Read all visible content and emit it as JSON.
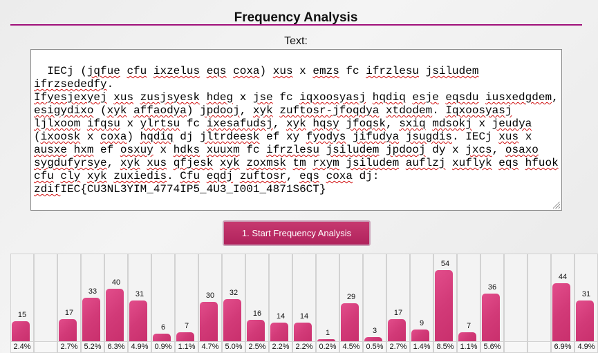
{
  "header": {
    "title": "Frequency Analysis"
  },
  "input": {
    "label": "Text:",
    "value": "IECj (jqfue cfu ixzelus eqs coxa) xus x emzs fc ifrzlesu jsiludem ifrzsededfy. Ifyesjexyej xus zusjsyesk hdeg x jse fc iqxoosyasj hqdiq esje eqsdu iusxedgdem, esigydixo (xyk affaodya) jpdooj, xyk zuftosr-jfoqdya xtdodem. Iqxoosyasj ljlxoom ifqsu x ylrtsu fc ixesafudsj, xyk hqsy jfoqsk, sxiq mdsokj x jeudya (ixoosk x coxa) hqdiq dj jltrdeesk ef xy fyodys jifudya jsugdis. IECj xus x ausxe hxm ef osxuy x hdks xuuxm fc ifrzlesu jsiludem jpdooj dy x jxcs, osaxo sygdufyrsye, xyk xus qfjesk xyk zoxmsk tm rxym jsiludem auflzj xuflyk eqs hfuok cfu cly xyk zuxiedis. Cfu eqdj zuftosr, eqs coxa dj: zdifIEC{CU3NL3YIM_4774IP5_4U3_I001_4871S6CT}"
  },
  "actions": {
    "start_label": "1. Start Frequency Analysis"
  },
  "chart_data": {
    "type": "bar",
    "visible_columns": 25,
    "counts": [
      15,
      null,
      17,
      33,
      40,
      31,
      6,
      7,
      30,
      32,
      16,
      14,
      14,
      1,
      29,
      3,
      17,
      9,
      54,
      7,
      36,
      null,
      null,
      44,
      31
    ],
    "percents": [
      "2.4%",
      "",
      "2.7%",
      "5.2%",
      "6.3%",
      "4.9%",
      "0.9%",
      "1.1%",
      "4.7%",
      "5.0%",
      "2.5%",
      "2.2%",
      "2.2%",
      "0.2%",
      "4.5%",
      "0.5%",
      "2.7%",
      "1.4%",
      "8.5%",
      "1.1%",
      "5.6%",
      "",
      "",
      "6.9%",
      "4.9%"
    ],
    "max_count": 54,
    "color": "#d23a78"
  }
}
